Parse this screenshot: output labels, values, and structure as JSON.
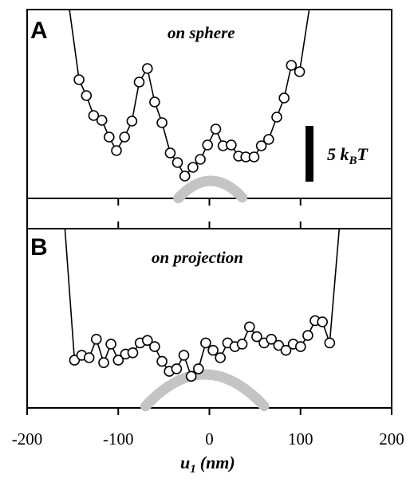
{
  "chart_data": [
    {
      "type": "scatter",
      "panel_letter": "A",
      "title": "on sphere",
      "x_range": [
        -200,
        200
      ],
      "scale_bar": {
        "label": "5",
        "symbol": "k",
        "subscript": "B",
        "suffix": "T"
      },
      "series": [
        {
          "x": [
            -143,
            -135,
            -127,
            -118,
            -110,
            -102,
            -93,
            -85,
            -77,
            -68,
            -60,
            -52,
            -43,
            -35,
            -27,
            -18,
            -10,
            -2,
            7,
            15,
            24,
            32,
            40,
            49,
            57,
            65,
            74,
            82,
            90,
            99
          ],
          "y": [
            120,
            100,
            75,
            69,
            48,
            31,
            48,
            68,
            117,
            134,
            92,
            66,
            28,
            16,
            -1,
            10,
            20,
            38,
            58,
            37,
            38,
            24,
            23,
            23,
            37,
            45,
            73,
            97,
            138,
            130
          ]
        }
      ],
      "fit_curve": "parabola"
    },
    {
      "type": "scatter",
      "panel_letter": "B",
      "title": "on projection",
      "x_range": [
        -200,
        200
      ],
      "xticks": [
        -200,
        -100,
        0,
        100,
        200
      ],
      "xlabel": "u",
      "xlabel_sub": "1",
      "xlabel_unit": "(nm)",
      "series": [
        {
          "x": [
            -148,
            -140,
            -132,
            -124,
            -116,
            -108,
            -100,
            -92,
            -84,
            -76,
            -68,
            -60,
            -52,
            -44,
            -36,
            -28,
            -20,
            -12,
            -4,
            4,
            12,
            20,
            28,
            36,
            44,
            52,
            60,
            68,
            76,
            84,
            92,
            100,
            108,
            116,
            124,
            132
          ],
          "y": [
            58,
            62,
            60,
            75,
            56,
            71,
            58,
            63,
            64,
            72,
            74,
            69,
            57,
            49,
            51,
            62,
            45,
            51,
            72,
            66,
            60,
            72,
            69,
            71,
            85,
            77,
            72,
            75,
            70,
            66,
            71,
            69,
            78,
            90,
            89,
            72
          ]
        }
      ],
      "fit_curve": "parabola"
    }
  ]
}
